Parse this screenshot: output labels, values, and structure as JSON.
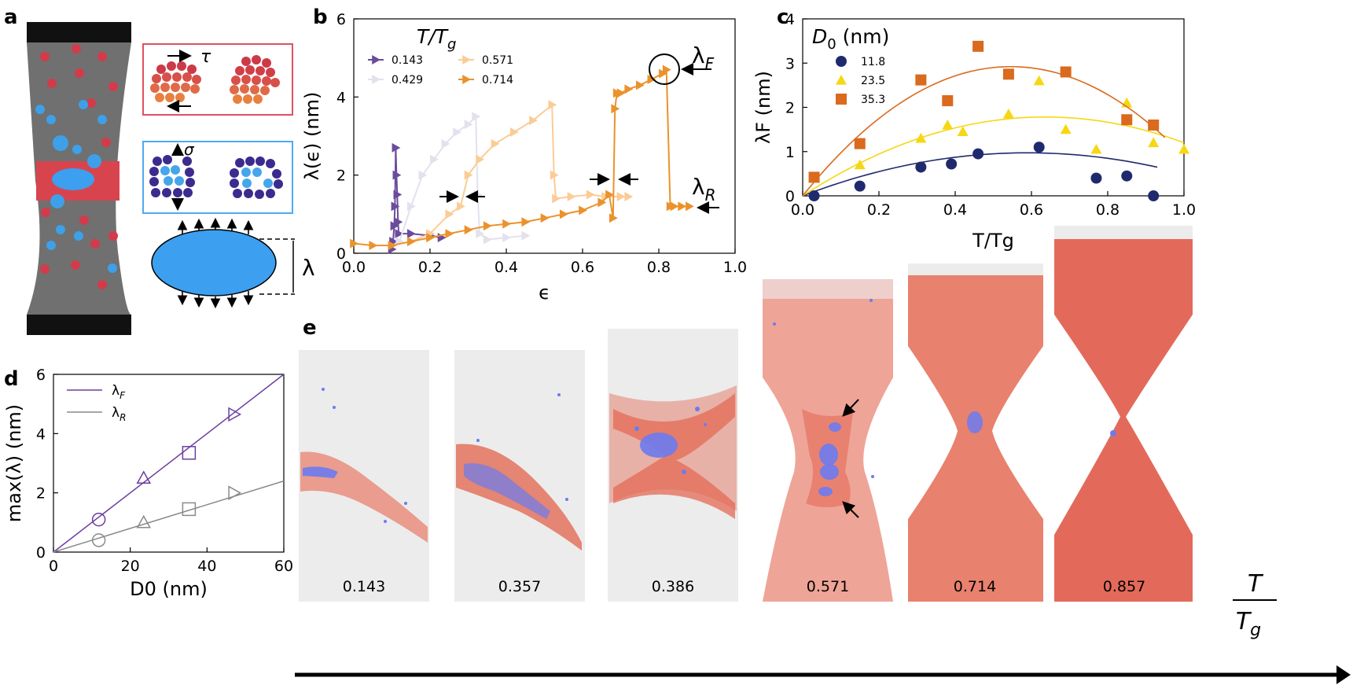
{
  "panels": {
    "a": {
      "letter": "a",
      "tau_symbol": "τ",
      "sigma_symbol": "σ",
      "lambda_symbol": "λ",
      "colors": {
        "specimen": "#707070",
        "grip": "#111111",
        "shear_band": "#d8444e",
        "red_particle": "#d33b4b",
        "blue_particle": "#3da0e8",
        "blue_ellipse": "#3c9ff0",
        "tau_box": "#e05060",
        "sigma_box": "#4eaaf0"
      }
    },
    "b": {
      "letter": "b",
      "legend_title": "T/T",
      "legend_title_sub": "g",
      "lambda_F": "λ",
      "lambda_F_sub": "F",
      "lambda_R": "λ",
      "lambda_R_sub": "R"
    },
    "c": {
      "letter": "c",
      "legend_title": "D",
      "legend_title_sub": "0",
      "legend_title_unit": " (nm)"
    },
    "d": {
      "letter": "d",
      "legend": [
        {
          "label": "λ",
          "sub": "F"
        },
        {
          "label": "λ",
          "sub": "R"
        }
      ]
    },
    "e": {
      "letter": "e",
      "labels": [
        "0.143",
        "0.357",
        "0.386",
        "0.571",
        "0.714",
        "0.857"
      ],
      "axis_T": "T",
      "axis_Tg": "T",
      "axis_Tg_sub": "g",
      "arrow_color": "#000000"
    }
  },
  "chart_data": [
    {
      "id": "b",
      "type": "line",
      "title": "",
      "xlabel": "ϵ",
      "ylabel": "λ(ϵ) (nm)",
      "xlim": [
        0,
        1.0
      ],
      "ylim": [
        0,
        6
      ],
      "xticks": [
        "0.0",
        "0.2",
        "0.4",
        "0.6",
        "0.8",
        "1.0"
      ],
      "yticks": [
        "0",
        "2",
        "4",
        "6"
      ],
      "series": [
        {
          "name": "0.143",
          "color": "#6a4c9c",
          "x": [
            0.1,
            0.103,
            0.106,
            0.108,
            0.11,
            0.112,
            0.114,
            0.116,
            0.118,
            0.15,
            0.2,
            0.23
          ],
          "y": [
            0.1,
            0.3,
            0.7,
            1.2,
            2.7,
            2.0,
            1.5,
            0.8,
            0.5,
            0.5,
            0.45,
            0.4
          ]
        },
        {
          "name": "0.429",
          "color": "#e3e1ee",
          "x": [
            0.12,
            0.15,
            0.18,
            0.21,
            0.24,
            0.27,
            0.3,
            0.32,
            0.325,
            0.33,
            0.35,
            0.4,
            0.45
          ],
          "y": [
            0.3,
            1.2,
            2.0,
            2.4,
            2.8,
            3.1,
            3.3,
            3.5,
            1.5,
            0.5,
            0.35,
            0.4,
            0.45
          ]
        },
        {
          "name": "0.571",
          "color": "#fbcc96",
          "x": [
            0.15,
            0.2,
            0.25,
            0.28,
            0.3,
            0.33,
            0.37,
            0.42,
            0.47,
            0.52,
            0.525,
            0.53,
            0.57,
            0.62,
            0.66,
            0.7,
            0.72
          ],
          "y": [
            0.3,
            0.5,
            1.0,
            1.2,
            2.0,
            2.4,
            2.8,
            3.1,
            3.4,
            3.8,
            2.0,
            1.4,
            1.45,
            1.5,
            1.45,
            1.45,
            1.45
          ]
        },
        {
          "name": "0.714",
          "color": "#eb922c",
          "x": [
            0.0,
            0.05,
            0.1,
            0.15,
            0.2,
            0.25,
            0.3,
            0.35,
            0.4,
            0.45,
            0.5,
            0.55,
            0.6,
            0.65,
            0.67,
            0.68,
            0.685,
            0.69,
            0.7,
            0.72,
            0.75,
            0.78,
            0.81,
            0.82,
            0.83,
            0.84,
            0.86,
            0.88
          ],
          "y": [
            0.25,
            0.2,
            0.2,
            0.3,
            0.4,
            0.5,
            0.6,
            0.7,
            0.75,
            0.8,
            0.9,
            1.0,
            1.1,
            1.3,
            1.5,
            0.9,
            3.7,
            4.1,
            4.1,
            4.2,
            4.3,
            4.45,
            4.6,
            4.7,
            1.2,
            1.2,
            1.2,
            1.2
          ]
        }
      ],
      "annotations": [
        "λF",
        "λR"
      ]
    },
    {
      "id": "c",
      "type": "scatter",
      "xlabel": "T/Tg",
      "ylabel": "λF (nm)",
      "xlim": [
        0,
        1.0
      ],
      "ylim": [
        0,
        4
      ],
      "xticks": [
        "0.0",
        "0.2",
        "0.4",
        "0.6",
        "0.8",
        "1.0"
      ],
      "yticks": [
        "0",
        "1",
        "2",
        "3",
        "4"
      ],
      "series": [
        {
          "name": "11.8",
          "color": "#1f2a6e",
          "marker": "circle",
          "x": [
            0.03,
            0.15,
            0.31,
            0.39,
            0.46,
            0.62,
            0.77,
            0.85,
            0.92
          ],
          "y": [
            0.0,
            0.22,
            0.65,
            0.72,
            0.95,
            1.1,
            0.4,
            0.45,
            0.0
          ],
          "fit": {
            "a": -2.8,
            "b": 3.3,
            "c": 0.0,
            "xmax": 0.93
          }
        },
        {
          "name": "23.5",
          "color": "#f6d712",
          "marker": "triangle",
          "x": [
            0.15,
            0.31,
            0.38,
            0.42,
            0.54,
            0.62,
            0.69,
            0.77,
            0.85,
            0.92,
            1.0
          ],
          "y": [
            0.7,
            1.3,
            1.6,
            1.45,
            1.85,
            2.6,
            1.5,
            1.05,
            2.1,
            1.2,
            1.05
          ],
          "fit": {
            "a": -4.4,
            "b": 5.6,
            "c": 0.0,
            "xmax": 1.0
          }
        },
        {
          "name": "35.3",
          "color": "#da6a1e",
          "marker": "square",
          "x": [
            0.03,
            0.15,
            0.31,
            0.38,
            0.46,
            0.54,
            0.69,
            0.85,
            0.92
          ],
          "y": [
            0.42,
            1.18,
            2.62,
            2.15,
            3.38,
            2.75,
            2.8,
            1.72,
            1.6
          ],
          "fit": {
            "a": -9.8,
            "b": 10.7,
            "c": 0.0,
            "xmax": 0.95
          }
        }
      ]
    },
    {
      "id": "d",
      "type": "scatter",
      "xlabel": "D0 (nm)",
      "ylabel": "max(λ) (nm)",
      "xlim": [
        0,
        60
      ],
      "ylim": [
        0,
        6
      ],
      "xticks": [
        "0",
        "20",
        "40",
        "60"
      ],
      "yticks": [
        "0",
        "2",
        "4",
        "6"
      ],
      "series": [
        {
          "name": "λF",
          "color": "#6a3fa0",
          "slope": 0.1,
          "points": [
            {
              "x": 11.8,
              "y": 1.1,
              "marker": "circle"
            },
            {
              "x": 23.5,
              "y": 2.5,
              "marker": "triangle"
            },
            {
              "x": 35.3,
              "y": 3.35,
              "marker": "square"
            },
            {
              "x": 47,
              "y": 4.65,
              "marker": "triangle-right"
            }
          ]
        },
        {
          "name": "λR",
          "color": "#8a8a8a",
          "slope": 0.04,
          "points": [
            {
              "x": 11.8,
              "y": 0.4,
              "marker": "circle"
            },
            {
              "x": 23.5,
              "y": 1.0,
              "marker": "triangle"
            },
            {
              "x": 35.3,
              "y": 1.45,
              "marker": "square"
            },
            {
              "x": 47,
              "y": 2.0,
              "marker": "triangle-right"
            }
          ]
        }
      ]
    }
  ]
}
